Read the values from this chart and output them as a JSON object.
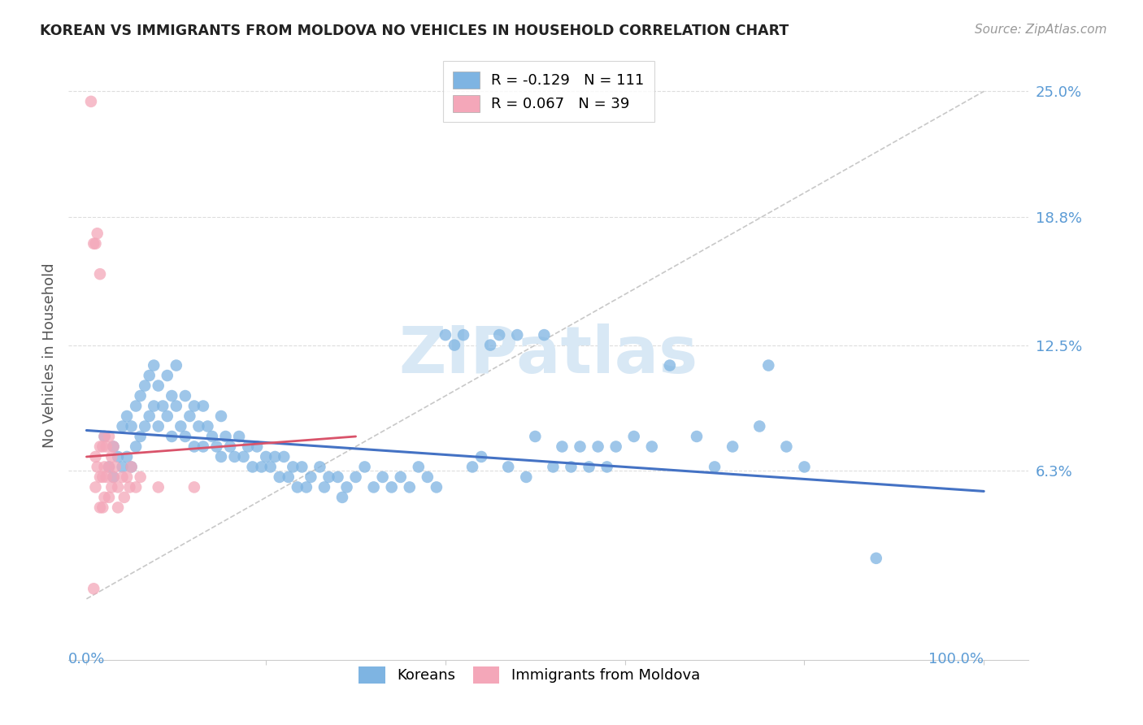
{
  "title": "KOREAN VS IMMIGRANTS FROM MOLDOVA NO VEHICLES IN HOUSEHOLD CORRELATION CHART",
  "source": "Source: ZipAtlas.com",
  "ylabel": "No Vehicles in Household",
  "ytick_labels": [
    "25.0%",
    "18.8%",
    "12.5%",
    "6.3%"
  ],
  "ytick_values": [
    0.25,
    0.188,
    0.125,
    0.063
  ],
  "xmin": 0.0,
  "xmax": 1.0,
  "ymin": -0.03,
  "ymax": 0.27,
  "korean_R": -0.129,
  "korean_N": 111,
  "moldova_R": 0.067,
  "moldova_N": 39,
  "korean_color": "#7EB4E2",
  "moldova_color": "#F4A7B9",
  "korean_line_color": "#4472C4",
  "moldova_line_color": "#D9536A",
  "legend_label_korean": "Koreans",
  "legend_label_moldova": "Immigrants from Moldova",
  "watermark": "ZIPatlas",
  "korean_x": [
    0.02,
    0.025,
    0.03,
    0.03,
    0.035,
    0.04,
    0.04,
    0.045,
    0.045,
    0.05,
    0.05,
    0.055,
    0.055,
    0.06,
    0.06,
    0.065,
    0.065,
    0.07,
    0.07,
    0.075,
    0.075,
    0.08,
    0.08,
    0.085,
    0.09,
    0.09,
    0.095,
    0.095,
    0.1,
    0.1,
    0.105,
    0.11,
    0.11,
    0.115,
    0.12,
    0.12,
    0.125,
    0.13,
    0.13,
    0.135,
    0.14,
    0.145,
    0.15,
    0.15,
    0.155,
    0.16,
    0.165,
    0.17,
    0.175,
    0.18,
    0.185,
    0.19,
    0.195,
    0.2,
    0.205,
    0.21,
    0.215,
    0.22,
    0.225,
    0.23,
    0.235,
    0.24,
    0.245,
    0.25,
    0.26,
    0.265,
    0.27,
    0.28,
    0.285,
    0.29,
    0.3,
    0.31,
    0.32,
    0.33,
    0.34,
    0.35,
    0.36,
    0.37,
    0.38,
    0.39,
    0.4,
    0.41,
    0.42,
    0.43,
    0.44,
    0.45,
    0.46,
    0.47,
    0.48,
    0.49,
    0.5,
    0.51,
    0.52,
    0.53,
    0.54,
    0.55,
    0.56,
    0.57,
    0.58,
    0.59,
    0.61,
    0.63,
    0.65,
    0.68,
    0.7,
    0.72,
    0.75,
    0.76,
    0.78,
    0.8,
    0.88
  ],
  "korean_y": [
    0.08,
    0.065,
    0.075,
    0.06,
    0.07,
    0.085,
    0.065,
    0.09,
    0.07,
    0.085,
    0.065,
    0.095,
    0.075,
    0.1,
    0.08,
    0.105,
    0.085,
    0.11,
    0.09,
    0.115,
    0.095,
    0.105,
    0.085,
    0.095,
    0.11,
    0.09,
    0.1,
    0.08,
    0.115,
    0.095,
    0.085,
    0.1,
    0.08,
    0.09,
    0.095,
    0.075,
    0.085,
    0.095,
    0.075,
    0.085,
    0.08,
    0.075,
    0.09,
    0.07,
    0.08,
    0.075,
    0.07,
    0.08,
    0.07,
    0.075,
    0.065,
    0.075,
    0.065,
    0.07,
    0.065,
    0.07,
    0.06,
    0.07,
    0.06,
    0.065,
    0.055,
    0.065,
    0.055,
    0.06,
    0.065,
    0.055,
    0.06,
    0.06,
    0.05,
    0.055,
    0.06,
    0.065,
    0.055,
    0.06,
    0.055,
    0.06,
    0.055,
    0.065,
    0.06,
    0.055,
    0.13,
    0.125,
    0.13,
    0.065,
    0.07,
    0.125,
    0.13,
    0.065,
    0.13,
    0.06,
    0.08,
    0.13,
    0.065,
    0.075,
    0.065,
    0.075,
    0.065,
    0.075,
    0.065,
    0.075,
    0.08,
    0.075,
    0.115,
    0.08,
    0.065,
    0.075,
    0.085,
    0.115,
    0.075,
    0.065,
    0.02
  ],
  "moldova_x": [
    0.005,
    0.008,
    0.01,
    0.01,
    0.01,
    0.012,
    0.012,
    0.015,
    0.015,
    0.015,
    0.015,
    0.018,
    0.018,
    0.018,
    0.02,
    0.02,
    0.02,
    0.022,
    0.022,
    0.025,
    0.025,
    0.025,
    0.028,
    0.028,
    0.03,
    0.03,
    0.032,
    0.035,
    0.035,
    0.04,
    0.042,
    0.045,
    0.048,
    0.05,
    0.055,
    0.06,
    0.08,
    0.12,
    0.008
  ],
  "moldova_y": [
    0.245,
    0.175,
    0.175,
    0.07,
    0.055,
    0.18,
    0.065,
    0.16,
    0.075,
    0.06,
    0.045,
    0.075,
    0.06,
    0.045,
    0.08,
    0.065,
    0.05,
    0.075,
    0.06,
    0.08,
    0.065,
    0.05,
    0.07,
    0.055,
    0.075,
    0.06,
    0.065,
    0.055,
    0.045,
    0.06,
    0.05,
    0.06,
    0.055,
    0.065,
    0.055,
    0.06,
    0.055,
    0.055,
    0.005
  ],
  "diag_line_x": [
    0.0,
    1.0
  ],
  "diag_line_y": [
    0.0,
    0.25
  ],
  "korean_trendline_x": [
    0.0,
    1.0
  ],
  "korean_trendline_y": [
    0.083,
    0.053
  ],
  "moldova_trendline_x": [
    0.0,
    0.3
  ],
  "moldova_trendline_y": [
    0.07,
    0.08
  ]
}
